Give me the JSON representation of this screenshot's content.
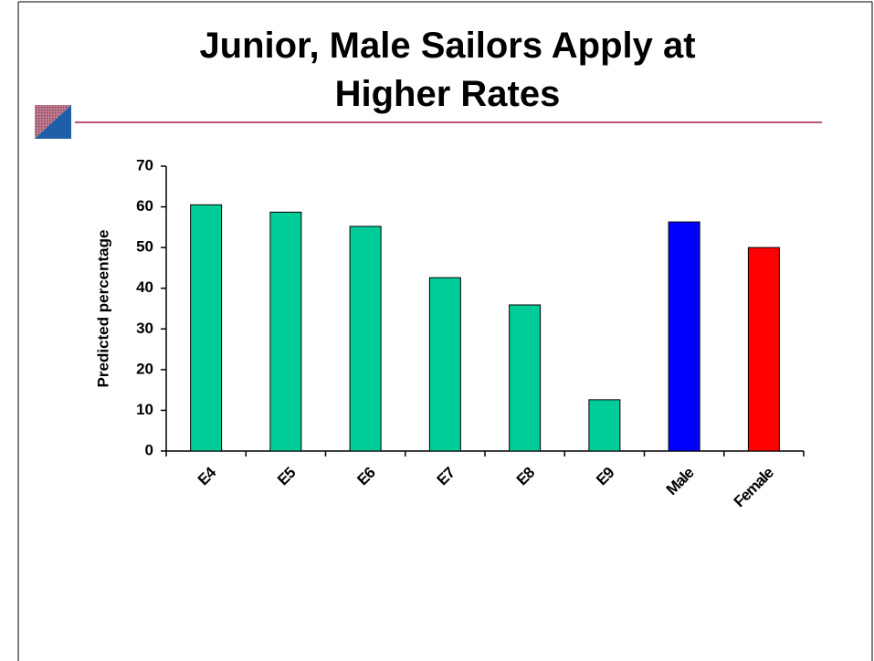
{
  "chart_data": {
    "type": "bar",
    "title": "Junior, Male Sailors Apply at Higher Rates",
    "y_label": "Predicted percentage",
    "categories": [
      "E4",
      "E5",
      "E6",
      "E7",
      "E8",
      "E9",
      "Male",
      "Female"
    ],
    "values": [
      60.5,
      58.7,
      55.2,
      42.6,
      35.9,
      12.6,
      56.3,
      50.0
    ],
    "colors": [
      "#00cc99",
      "#00cc99",
      "#00cc99",
      "#00cc99",
      "#00cc99",
      "#00cc99",
      "#0000ff",
      "#ff0000"
    ],
    "ylim": [
      0,
      70
    ],
    "yticks": [
      0,
      10,
      20,
      30,
      40,
      50,
      60,
      70
    ],
    "grid": false
  }
}
